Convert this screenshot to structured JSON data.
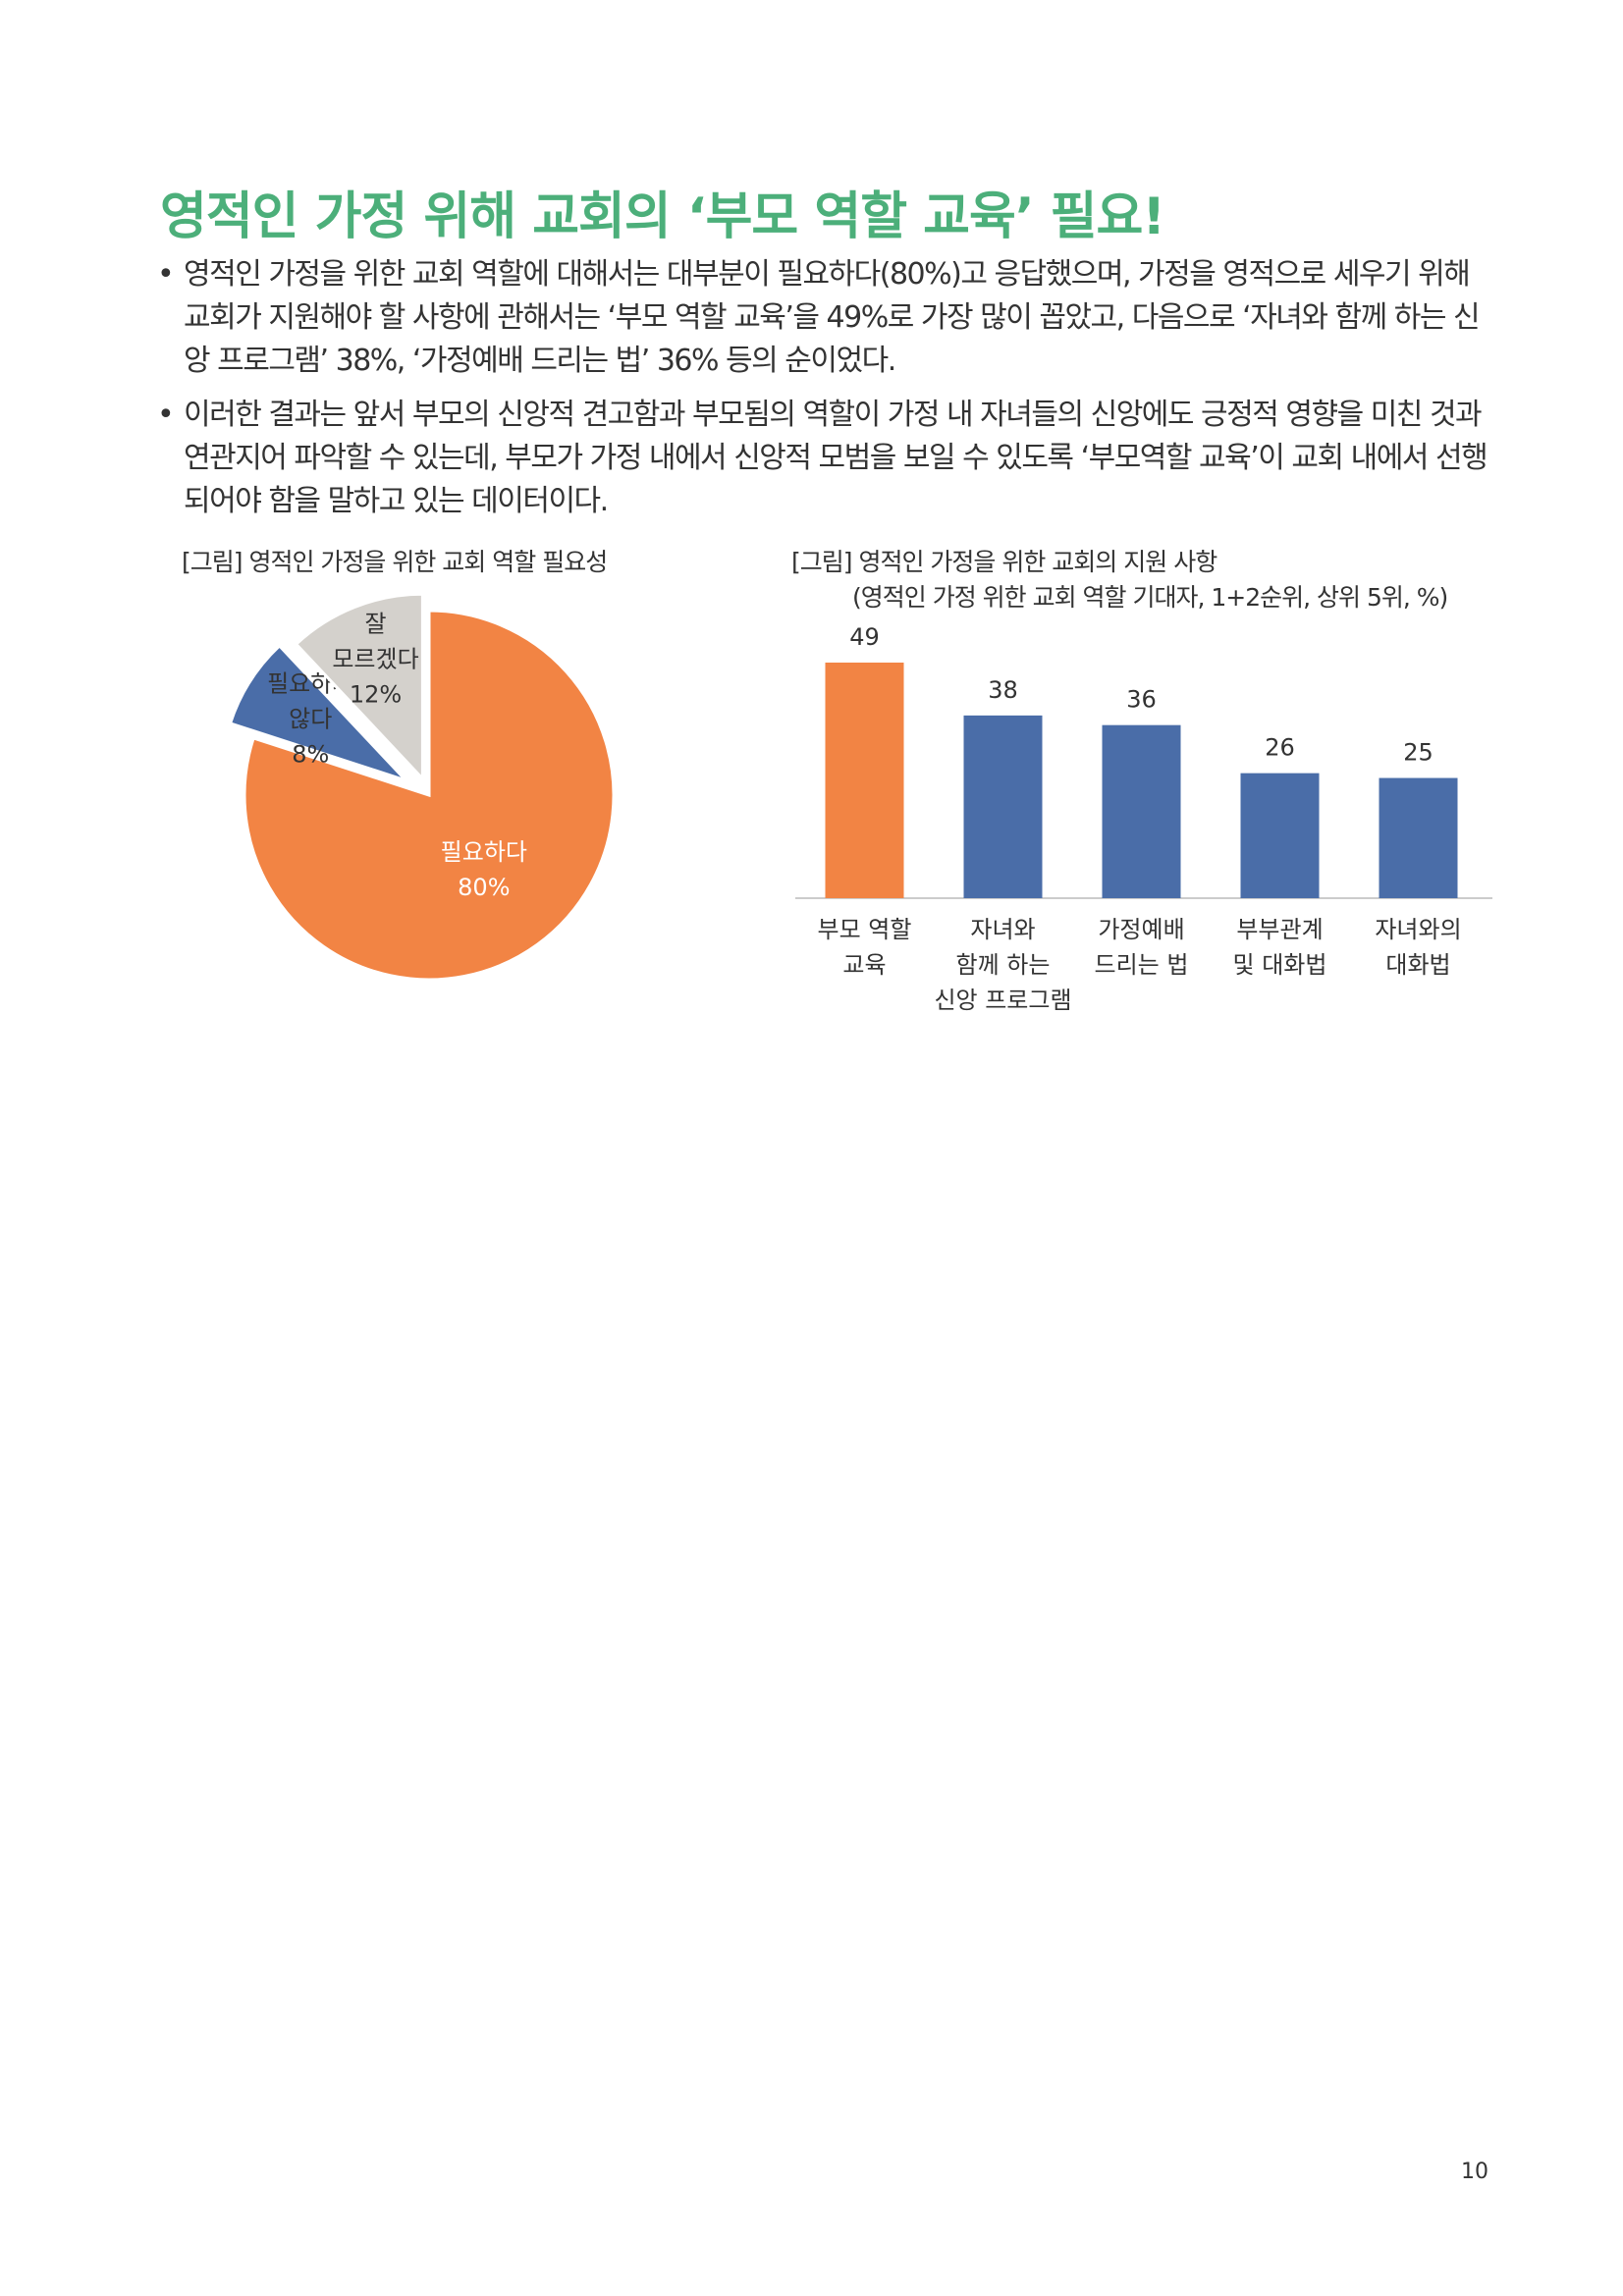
{
  "page": {
    "title": "영적인 가정 위해 교회의 ‘부모 역할 교육’ 필요!",
    "title_color": "#4caf7a",
    "bullet_mark": "•",
    "bullets": [
      "영적인 가정을 위한 교회 역할에 대해서는 대부분이 필요하다(80%)고 응답했으며, 가정을 영적으로 세우기 위해 교회가 지원해야 할 사항에 관해서는 ‘부모 역할 교육’을 49%로 가장 많이 꼽았고, 다음으로 ‘자녀와 함께 하는 신앙 프로그램’ 38%, ‘가정예배 드리는 법’ 36% 등의 순이었다.",
      "이러한 결과는 앞서 부모의 신앙적 견고함과 부모됨의 역할이 가정 내 자녀들의 신앙에도 긍정적 영향을 미친 것과 연관지어 파악할 수 있는데, 부모가 가정 내에서 신앙적 모범을 보일 수 있도록 ‘부모역할 교육’이 교회 내에서 선행되어야 함을 말하고 있는 데이터이다."
    ],
    "page_number": "10"
  },
  "chart_data": [
    {
      "type": "pie",
      "title": "[그림] 영적인 가정을 위한 교회 역할 필요성",
      "unit": "%",
      "slices": [
        {
          "label": [
            "필요하다"
          ],
          "value": 80,
          "value_label": "80%",
          "color": "#f28444"
        },
        {
          "label": [
            "필요하지",
            "않다"
          ],
          "value": 8,
          "value_label": "8%",
          "color": "#4a6da8"
        },
        {
          "label": [
            "잘",
            "모르겠다"
          ],
          "value": 12,
          "value_label": "12%",
          "color": "#d4d1cc"
        }
      ]
    },
    {
      "type": "bar",
      "title": "[그림] 영적인 가정을 위한 교회의 지원 사항",
      "subtitle": "(영적인 가정 위한 교회 역할 기대자, 1+2순위, 상위 5위, %)",
      "categories": [
        [
          "부모 역할",
          "교육"
        ],
        [
          "자녀와",
          "함께 하는",
          "신앙 프로그램"
        ],
        [
          "가정예배",
          "드리는 법"
        ],
        [
          "부부관계",
          "및 대화법"
        ],
        [
          "자녀와의",
          "대화법"
        ]
      ],
      "values": [
        49,
        38,
        36,
        26,
        25
      ],
      "value_labels": [
        "49",
        "38",
        "36",
        "26",
        "25"
      ],
      "bar_colors": [
        "#f28444",
        "#4a6da8",
        "#4a6da8",
        "#4a6da8",
        "#4a6da8"
      ],
      "ylim": [
        0,
        49
      ]
    }
  ]
}
